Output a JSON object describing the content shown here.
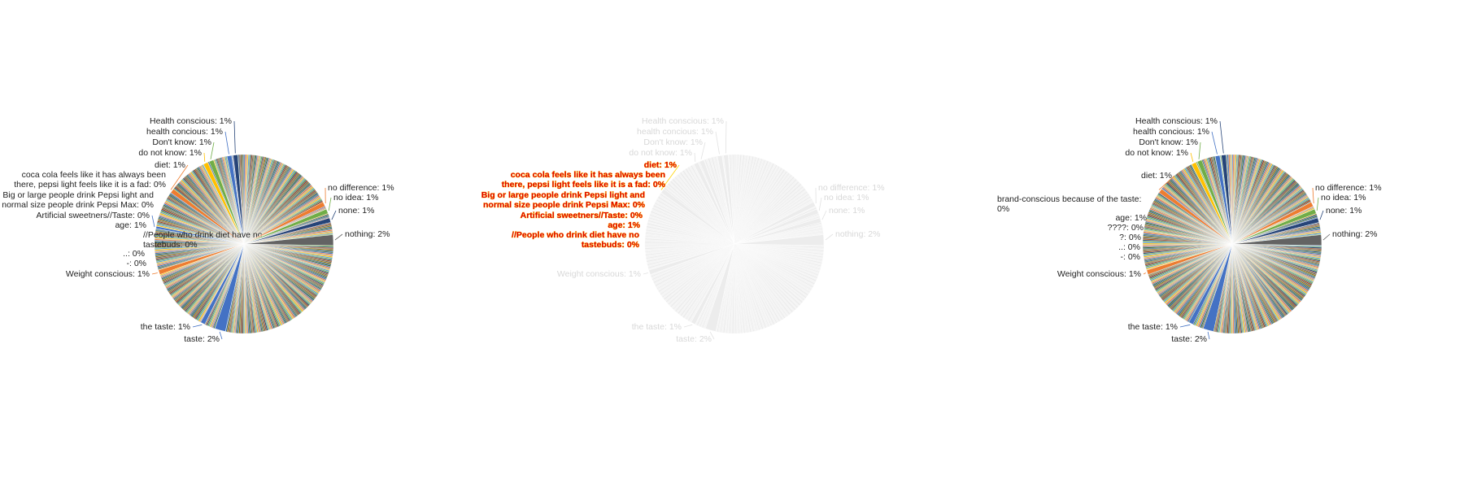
{
  "chart_data": [
    {
      "type": "pie",
      "labeled_slices": [
        {
          "label": "Health conscious: 1%",
          "value": 1
        },
        {
          "label": "health concious: 1%",
          "value": 1
        },
        {
          "label": "Don't know: 1%",
          "value": 1
        },
        {
          "label": "do not know: 1%",
          "value": 1
        },
        {
          "label": "diet: 1%",
          "value": 1
        },
        {
          "label": "coca cola feels like it has always been there, pepsi light feels like it is a fad: 0%",
          "value": 0
        },
        {
          "label": "Big or large people drink Pepsi light and normal size people drink Pepsi Max: 0%",
          "value": 0
        },
        {
          "label": "Artificial sweetners//Taste: 0%",
          "value": 0
        },
        {
          "label": "age: 1%",
          "value": 1
        },
        {
          "label": "//People who drink diet have no tastebuds: 0%",
          "value": 0
        },
        {
          "label": "..: 0%",
          "value": 0
        },
        {
          "label": "-: 0%",
          "value": 0
        },
        {
          "label": "Weight conscious: 1%",
          "value": 1
        },
        {
          "label": "the taste: 1%",
          "value": 1
        },
        {
          "label": "taste: 2%",
          "value": 2
        },
        {
          "label": "no difference: 1%",
          "value": 1
        },
        {
          "label": "no idea: 1%",
          "value": 1
        },
        {
          "label": "none: 1%",
          "value": 1
        },
        {
          "label": "nothing: 2%",
          "value": 2
        }
      ]
    },
    {
      "type": "pie",
      "rendering": "faded with glitched labels",
      "labeled_slices": [
        {
          "label": "Health conscious: 1%",
          "value": 1
        },
        {
          "label": "health concious: 1%",
          "value": 1
        },
        {
          "label": "Don't know: 1%",
          "value": 1
        },
        {
          "label": "do not know: 1%",
          "value": 1
        },
        {
          "label": "diet: 1%",
          "value": 1
        },
        {
          "label": "coca cola feels like it has always been there, pepsi light feels like it is a fad: 0%",
          "value": 0
        },
        {
          "label": "Big or large people drink Pepsi light and normal size people drink Pepsi Max: 0%",
          "value": 0
        },
        {
          "label": "Artificial sweetners//Taste: 0%",
          "value": 0
        },
        {
          "label": "age: 1%",
          "value": 1
        },
        {
          "label": "//People who drink diet have no tastebuds: 0%",
          "value": 0
        },
        {
          "label": "Weight conscious: 1%",
          "value": 1
        },
        {
          "label": "the taste: 1%",
          "value": 1
        },
        {
          "label": "taste: 2%",
          "value": 2
        },
        {
          "label": "no difference: 1%",
          "value": 1
        },
        {
          "label": "no idea: 1%",
          "value": 1
        },
        {
          "label": "none: 1%",
          "value": 1
        },
        {
          "label": "nothing: 2%",
          "value": 2
        }
      ]
    },
    {
      "type": "pie",
      "labeled_slices": [
        {
          "label": "Health conscious: 1%",
          "value": 1
        },
        {
          "label": "health concious: 1%",
          "value": 1
        },
        {
          "label": "Don't know: 1%",
          "value": 1
        },
        {
          "label": "do not know: 1%",
          "value": 1
        },
        {
          "label": "diet: 1%",
          "value": 1
        },
        {
          "label": "brand-conscious because of the taste: 0%",
          "value": 0
        },
        {
          "label": "age: 1%",
          "value": 1
        },
        {
          "label": "????: 0%",
          "value": 0
        },
        {
          "label": "?: 0%",
          "value": 0
        },
        {
          "label": "..: 0%",
          "value": 0
        },
        {
          "label": "-: 0%",
          "value": 0
        },
        {
          "label": "Weight conscious: 1%",
          "value": 1
        },
        {
          "label": "the taste: 1%",
          "value": 1
        },
        {
          "label": "taste: 2%",
          "value": 2
        },
        {
          "label": "no difference: 1%",
          "value": 1
        },
        {
          "label": "no idea: 1%",
          "value": 1
        },
        {
          "label": "none: 1%",
          "value": 1
        },
        {
          "label": "nothing: 2%",
          "value": 2
        }
      ]
    }
  ]
}
